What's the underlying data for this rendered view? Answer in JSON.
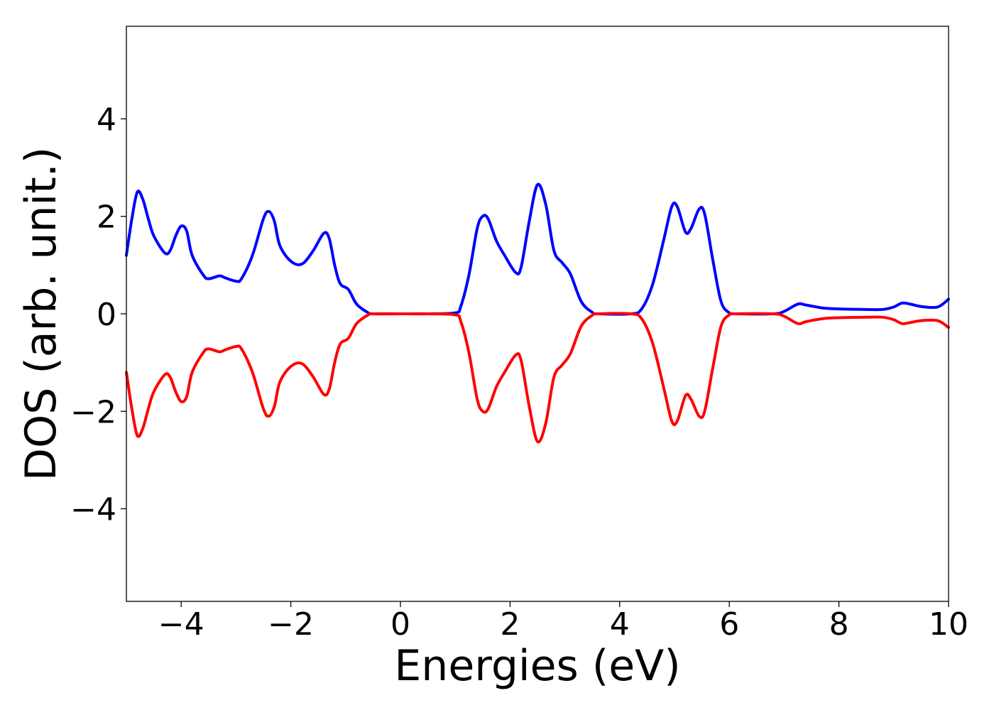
{
  "chart_data": {
    "type": "line",
    "title": "",
    "xlabel": "Energies (eV)",
    "ylabel": "DOS (arb. unit.)",
    "xlim": [
      -5,
      10
    ],
    "ylim": [
      -5.9,
      5.9
    ],
    "x_ticks": [
      -4,
      -2,
      0,
      2,
      4,
      6,
      8,
      10
    ],
    "x_tick_labels": [
      "−4",
      "−2",
      "0",
      "2",
      "4",
      "6",
      "8",
      "10"
    ],
    "y_ticks": [
      -4,
      -2,
      0,
      2,
      4
    ],
    "y_tick_labels": [
      "−4",
      "−2",
      "0",
      "2",
      "4"
    ],
    "grid": false,
    "legend": "none",
    "series": [
      {
        "color": "#0000ff",
        "points": [
          [
            -5.0,
            1.2
          ],
          [
            -4.9,
            1.95
          ],
          [
            -4.8,
            2.5
          ],
          [
            -4.7,
            2.35
          ],
          [
            -4.6,
            1.95
          ],
          [
            -4.5,
            1.6
          ],
          [
            -4.3,
            1.25
          ],
          [
            -4.2,
            1.3
          ],
          [
            -4.1,
            1.6
          ],
          [
            -4.0,
            1.8
          ],
          [
            -3.9,
            1.7
          ],
          [
            -3.8,
            1.2
          ],
          [
            -3.6,
            0.8
          ],
          [
            -3.5,
            0.72
          ],
          [
            -3.3,
            0.78
          ],
          [
            -3.2,
            0.74
          ],
          [
            -3.0,
            0.67
          ],
          [
            -2.9,
            0.72
          ],
          [
            -2.7,
            1.2
          ],
          [
            -2.5,
            1.95
          ],
          [
            -2.4,
            2.1
          ],
          [
            -2.3,
            1.9
          ],
          [
            -2.2,
            1.4
          ],
          [
            -2.0,
            1.08
          ],
          [
            -1.8,
            1.02
          ],
          [
            -1.6,
            1.28
          ],
          [
            -1.4,
            1.65
          ],
          [
            -1.3,
            1.55
          ],
          [
            -1.2,
            1.0
          ],
          [
            -1.1,
            0.62
          ],
          [
            -0.95,
            0.5
          ],
          [
            -0.8,
            0.2
          ],
          [
            -0.6,
            0.03
          ],
          [
            -0.5,
            0.0
          ],
          [
            0.0,
            0.0
          ],
          [
            0.5,
            0.0
          ],
          [
            1.0,
            0.02
          ],
          [
            1.1,
            0.15
          ],
          [
            1.25,
            0.8
          ],
          [
            1.4,
            1.75
          ],
          [
            1.5,
            2.0
          ],
          [
            1.6,
            1.95
          ],
          [
            1.75,
            1.5
          ],
          [
            1.9,
            1.2
          ],
          [
            2.1,
            0.85
          ],
          [
            2.2,
            0.95
          ],
          [
            2.35,
            1.9
          ],
          [
            2.5,
            2.65
          ],
          [
            2.65,
            2.25
          ],
          [
            2.8,
            1.3
          ],
          [
            2.95,
            1.05
          ],
          [
            3.1,
            0.82
          ],
          [
            3.3,
            0.25
          ],
          [
            3.5,
            0.03
          ],
          [
            3.6,
            0.0
          ],
          [
            4.2,
            0.0
          ],
          [
            4.4,
            0.1
          ],
          [
            4.6,
            0.6
          ],
          [
            4.8,
            1.5
          ],
          [
            4.95,
            2.2
          ],
          [
            5.05,
            2.2
          ],
          [
            5.2,
            1.68
          ],
          [
            5.3,
            1.75
          ],
          [
            5.45,
            2.15
          ],
          [
            5.55,
            2.05
          ],
          [
            5.7,
            1.1
          ],
          [
            5.85,
            0.25
          ],
          [
            6.0,
            0.02
          ],
          [
            6.1,
            0.0
          ],
          [
            6.8,
            0.0
          ],
          [
            7.0,
            0.05
          ],
          [
            7.25,
            0.2
          ],
          [
            7.4,
            0.18
          ],
          [
            7.7,
            0.12
          ],
          [
            8.0,
            0.1
          ],
          [
            8.5,
            0.09
          ],
          [
            8.8,
            0.09
          ],
          [
            9.0,
            0.14
          ],
          [
            9.15,
            0.22
          ],
          [
            9.3,
            0.2
          ],
          [
            9.5,
            0.15
          ],
          [
            9.8,
            0.14
          ],
          [
            10.0,
            0.3
          ]
        ]
      },
      {
        "color": "#ff0000",
        "points": [
          [
            -5.0,
            -1.2
          ],
          [
            -4.9,
            -1.95
          ],
          [
            -4.8,
            -2.5
          ],
          [
            -4.7,
            -2.35
          ],
          [
            -4.6,
            -1.95
          ],
          [
            -4.5,
            -1.6
          ],
          [
            -4.3,
            -1.25
          ],
          [
            -4.2,
            -1.3
          ],
          [
            -4.1,
            -1.6
          ],
          [
            -4.0,
            -1.8
          ],
          [
            -3.9,
            -1.7
          ],
          [
            -3.8,
            -1.2
          ],
          [
            -3.6,
            -0.8
          ],
          [
            -3.5,
            -0.72
          ],
          [
            -3.3,
            -0.78
          ],
          [
            -3.2,
            -0.74
          ],
          [
            -3.0,
            -0.67
          ],
          [
            -2.9,
            -0.72
          ],
          [
            -2.7,
            -1.2
          ],
          [
            -2.5,
            -1.95
          ],
          [
            -2.4,
            -2.1
          ],
          [
            -2.3,
            -1.9
          ],
          [
            -2.2,
            -1.4
          ],
          [
            -2.0,
            -1.08
          ],
          [
            -1.8,
            -1.02
          ],
          [
            -1.6,
            -1.28
          ],
          [
            -1.4,
            -1.65
          ],
          [
            -1.3,
            -1.55
          ],
          [
            -1.2,
            -1.0
          ],
          [
            -1.1,
            -0.62
          ],
          [
            -0.95,
            -0.5
          ],
          [
            -0.8,
            -0.2
          ],
          [
            -0.6,
            -0.03
          ],
          [
            -0.5,
            0.0
          ],
          [
            0.0,
            0.0
          ],
          [
            0.5,
            0.0
          ],
          [
            1.0,
            -0.02
          ],
          [
            1.1,
            -0.15
          ],
          [
            1.25,
            -0.8
          ],
          [
            1.4,
            -1.75
          ],
          [
            1.5,
            -2.0
          ],
          [
            1.6,
            -1.95
          ],
          [
            1.75,
            -1.5
          ],
          [
            1.9,
            -1.2
          ],
          [
            2.1,
            -0.85
          ],
          [
            2.2,
            -0.95
          ],
          [
            2.35,
            -1.9
          ],
          [
            2.5,
            -2.62
          ],
          [
            2.65,
            -2.25
          ],
          [
            2.8,
            -1.3
          ],
          [
            2.95,
            -1.05
          ],
          [
            3.1,
            -0.82
          ],
          [
            3.3,
            -0.25
          ],
          [
            3.5,
            -0.03
          ],
          [
            3.6,
            0.0
          ],
          [
            4.2,
            0.0
          ],
          [
            4.4,
            -0.1
          ],
          [
            4.6,
            -0.6
          ],
          [
            4.8,
            -1.5
          ],
          [
            4.95,
            -2.2
          ],
          [
            5.05,
            -2.2
          ],
          [
            5.2,
            -1.68
          ],
          [
            5.3,
            -1.75
          ],
          [
            5.45,
            -2.1
          ],
          [
            5.55,
            -2.0
          ],
          [
            5.7,
            -1.1
          ],
          [
            5.85,
            -0.25
          ],
          [
            6.0,
            -0.02
          ],
          [
            6.1,
            0.0
          ],
          [
            6.8,
            0.0
          ],
          [
            7.0,
            -0.05
          ],
          [
            7.25,
            -0.2
          ],
          [
            7.4,
            -0.16
          ],
          [
            7.7,
            -0.1
          ],
          [
            8.0,
            -0.08
          ],
          [
            8.5,
            -0.07
          ],
          [
            8.8,
            -0.07
          ],
          [
            9.0,
            -0.12
          ],
          [
            9.15,
            -0.2
          ],
          [
            9.3,
            -0.18
          ],
          [
            9.5,
            -0.14
          ],
          [
            9.8,
            -0.14
          ],
          [
            10.0,
            -0.28
          ]
        ]
      }
    ]
  }
}
